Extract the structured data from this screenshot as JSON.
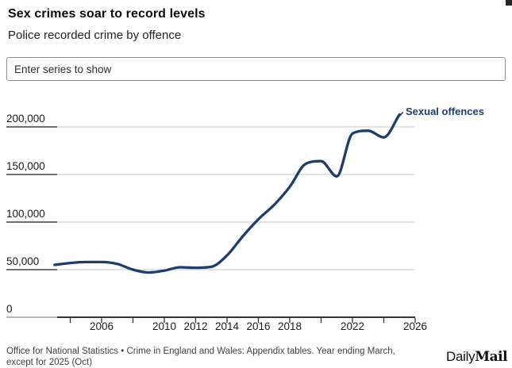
{
  "header": {
    "title": "Sex crimes soar to record levels",
    "subtitle": "Police recorded crime by offence"
  },
  "controls": {
    "series_input_placeholder": "Enter series to show"
  },
  "chart_data": {
    "type": "line",
    "title": "Sex crimes soar to record levels",
    "subtitle": "Police recorded crime by offence",
    "xlabel": "",
    "ylabel": "",
    "xlim": [
      2003,
      2026
    ],
    "ylim": [
      0,
      200000
    ],
    "grid": true,
    "legend_position": "end-of-line-label",
    "x_ticks": [
      2004,
      2006,
      2008,
      2010,
      2012,
      2014,
      2016,
      2018,
      2020,
      2022,
      2024,
      2026
    ],
    "x_tick_labels": [
      "",
      "2006",
      "",
      "2010",
      "2012",
      "2014",
      "2016",
      "2018",
      "",
      "2022",
      "",
      "2026"
    ],
    "y_ticks": [
      0,
      50000,
      100000,
      150000,
      200000
    ],
    "y_tick_labels": [
      "0",
      "50,000",
      "100,000",
      "150,000",
      "200,000"
    ],
    "series": [
      {
        "name": "Sexual offences",
        "color": "#1c3e6e",
        "x": [
          2003,
          2004,
          2005,
          2006,
          2007,
          2008,
          2009,
          2010,
          2011,
          2012,
          2013,
          2014,
          2015,
          2016,
          2017,
          2018,
          2019,
          2020,
          2021,
          2022,
          2023,
          2024,
          2025
        ],
        "values": [
          55000,
          57000,
          58000,
          58000,
          56000,
          50000,
          47000,
          49000,
          52500,
          52000,
          53000,
          65000,
          85000,
          103000,
          118000,
          137000,
          161000,
          164000,
          148000,
          193000,
          196000,
          189000,
          213000
        ]
      }
    ]
  },
  "footer": {
    "source_line1": "Office for National Statistics • Crime in England and Wales: Appendix tables. Year ending March,",
    "source_line2": "except for 2025 (Oct)",
    "logo_daily": "Daily",
    "logo_mail": "Mail"
  }
}
